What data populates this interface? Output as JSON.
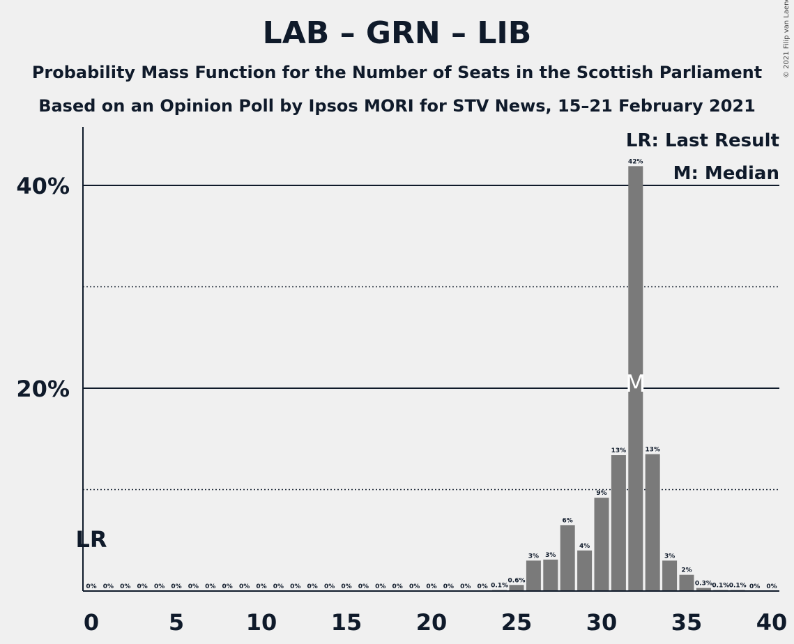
{
  "title": "LAB – GRN – LIB",
  "subtitle1": "Probability Mass Function for the Number of Seats in the Scottish Parliament",
  "subtitle2": "Based on an Opinion Poll by Ipsos MORI for STV News, 15–21 February 2021",
  "copyright": "© 2021 Filip van Laenen",
  "legend": {
    "last_result": "LR: Last Result",
    "median": "M: Median"
  },
  "colors": {
    "bar": "#7a7a7a",
    "background": "#f0f0f0",
    "text": "#0f1a2a"
  },
  "chart_data": {
    "type": "bar",
    "xlim": [
      0,
      40
    ],
    "ylim": [
      0,
      45
    ],
    "x_ticks": [
      0,
      5,
      10,
      15,
      20,
      25,
      30,
      35,
      40
    ],
    "y_ticks_labeled": [
      {
        "value": 20,
        "label": "20%"
      },
      {
        "value": 40,
        "label": "40%"
      }
    ],
    "y_gridlines_dotted": [
      10,
      30
    ],
    "last_result": {
      "x": 0,
      "label": "LR"
    },
    "median": {
      "x": 32,
      "label": "M"
    },
    "bars": [
      {
        "x": 0,
        "value": 0,
        "label": "0%"
      },
      {
        "x": 1,
        "value": 0,
        "label": "0%"
      },
      {
        "x": 2,
        "value": 0,
        "label": "0%"
      },
      {
        "x": 3,
        "value": 0,
        "label": "0%"
      },
      {
        "x": 4,
        "value": 0,
        "label": "0%"
      },
      {
        "x": 5,
        "value": 0,
        "label": "0%"
      },
      {
        "x": 6,
        "value": 0,
        "label": "0%"
      },
      {
        "x": 7,
        "value": 0,
        "label": "0%"
      },
      {
        "x": 8,
        "value": 0,
        "label": "0%"
      },
      {
        "x": 9,
        "value": 0,
        "label": "0%"
      },
      {
        "x": 10,
        "value": 0,
        "label": "0%"
      },
      {
        "x": 11,
        "value": 0,
        "label": "0%"
      },
      {
        "x": 12,
        "value": 0,
        "label": "0%"
      },
      {
        "x": 13,
        "value": 0,
        "label": "0%"
      },
      {
        "x": 14,
        "value": 0,
        "label": "0%"
      },
      {
        "x": 15,
        "value": 0,
        "label": "0%"
      },
      {
        "x": 16,
        "value": 0,
        "label": "0%"
      },
      {
        "x": 17,
        "value": 0,
        "label": "0%"
      },
      {
        "x": 18,
        "value": 0,
        "label": "0%"
      },
      {
        "x": 19,
        "value": 0,
        "label": "0%"
      },
      {
        "x": 20,
        "value": 0,
        "label": "0%"
      },
      {
        "x": 21,
        "value": 0,
        "label": "0%"
      },
      {
        "x": 22,
        "value": 0,
        "label": "0%"
      },
      {
        "x": 23,
        "value": 0,
        "label": "0%"
      },
      {
        "x": 24,
        "value": 0.1,
        "label": "0.1%"
      },
      {
        "x": 25,
        "value": 0.6,
        "label": "0.6%"
      },
      {
        "x": 26,
        "value": 3.0,
        "label": "3%"
      },
      {
        "x": 27,
        "value": 3.1,
        "label": "3%"
      },
      {
        "x": 28,
        "value": 6.5,
        "label": "6%"
      },
      {
        "x": 29,
        "value": 4.0,
        "label": "4%"
      },
      {
        "x": 30,
        "value": 9.2,
        "label": "9%"
      },
      {
        "x": 31,
        "value": 13.4,
        "label": "13%"
      },
      {
        "x": 32,
        "value": 41.9,
        "label": "42%"
      },
      {
        "x": 33,
        "value": 13.5,
        "label": "13%"
      },
      {
        "x": 34,
        "value": 3.0,
        "label": "3%"
      },
      {
        "x": 35,
        "value": 1.6,
        "label": "2%"
      },
      {
        "x": 36,
        "value": 0.3,
        "label": "0.3%"
      },
      {
        "x": 37,
        "value": 0.1,
        "label": "0.1%"
      },
      {
        "x": 38,
        "value": 0.1,
        "label": "0.1%"
      },
      {
        "x": 39,
        "value": 0,
        "label": "0%"
      },
      {
        "x": 40,
        "value": 0,
        "label": "0%"
      }
    ]
  }
}
